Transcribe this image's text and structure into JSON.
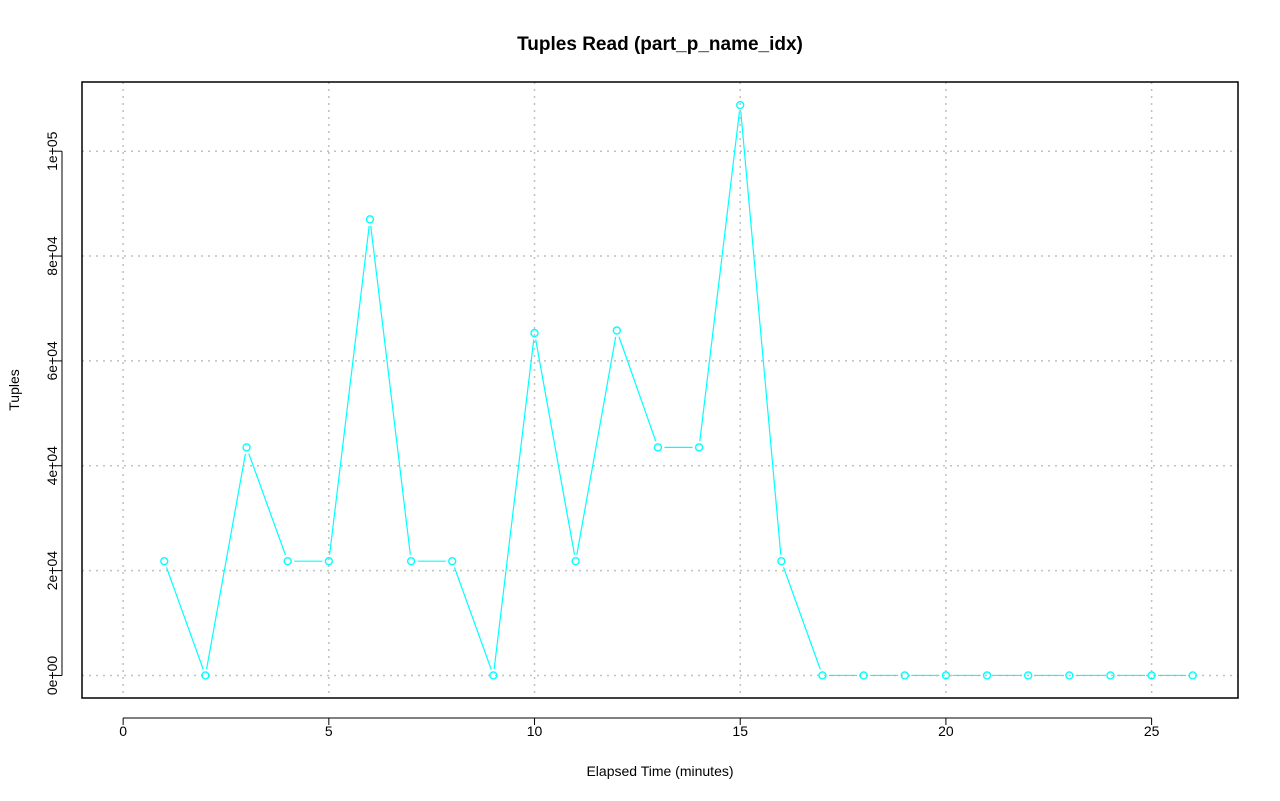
{
  "chart_data": {
    "type": "line",
    "title": "Tuples Read (part_p_name_idx)",
    "xlabel": "Elapsed Time (minutes)",
    "ylabel": "Tuples",
    "xlim": [
      -1,
      27.1
    ],
    "ylim": [
      -4300,
      113200
    ],
    "x_ticks": [
      0,
      5,
      10,
      15,
      20,
      25
    ],
    "x_tick_labels": [
      "0",
      "5",
      "10",
      "15",
      "20",
      "25"
    ],
    "y_ticks": [
      0,
      20000,
      40000,
      60000,
      80000,
      100000
    ],
    "y_tick_labels": [
      "0e+00",
      "2e+04",
      "4e+04",
      "6e+04",
      "8e+04",
      "1e+05"
    ],
    "grid": true,
    "series_color": "#00ffff",
    "series": [
      {
        "x": [
          1,
          2,
          3,
          4,
          5,
          6,
          7,
          8,
          9,
          10,
          11,
          12,
          13,
          14,
          15,
          16,
          17,
          18,
          19,
          20,
          21,
          22,
          23,
          24,
          25,
          26
        ],
        "values": [
          21800,
          0,
          43500,
          21800,
          21800,
          87000,
          21800,
          21800,
          0,
          65300,
          21800,
          65800,
          43500,
          43500,
          108800,
          21800,
          0,
          0,
          0,
          0,
          0,
          0,
          0,
          0,
          0,
          0
        ]
      }
    ]
  }
}
